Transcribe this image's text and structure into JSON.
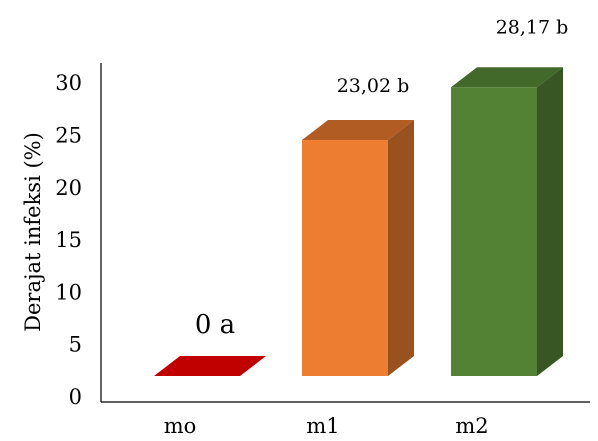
{
  "chart_data": {
    "type": "bar",
    "title": "",
    "xlabel": "",
    "ylabel": "Derajat infeksi (%)",
    "ylim": [
      0,
      30
    ],
    "yticks": [
      0,
      5,
      10,
      15,
      20,
      25,
      30
    ],
    "grid": false,
    "legend": "none",
    "three_d": true,
    "categories": [
      "mo",
      "m1",
      "m2"
    ],
    "values": [
      0,
      23.02,
      28.17
    ],
    "data_labels": [
      "0 a",
      "23,02 b",
      "28,17 b"
    ],
    "colors": [
      {
        "front": "#c00000",
        "side": "#8b0000",
        "top": "#c00000"
      },
      {
        "front": "#ed7d31",
        "side": "#9a5120",
        "top": "#b05c22"
      },
      {
        "front": "#548235",
        "side": "#375623",
        "top": "#43692a"
      }
    ]
  }
}
